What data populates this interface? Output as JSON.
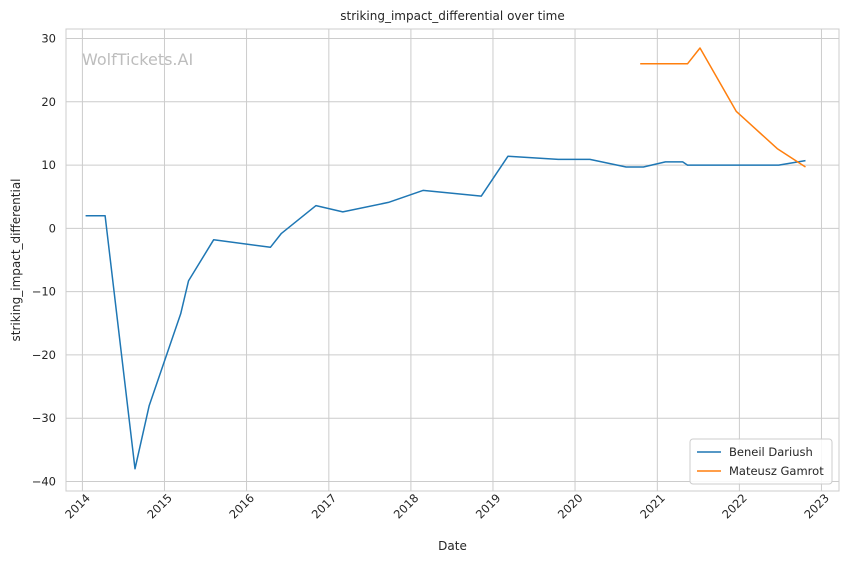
{
  "chart_data": {
    "type": "line",
    "title": "striking_impact_differential over time",
    "xlabel": "Date",
    "ylabel": "striking_impact_differential",
    "watermark": "WolfTickets.AI",
    "x_range": [
      "2013-10-20",
      "2023-03-20"
    ],
    "ylim": [
      -41.5,
      31.5
    ],
    "grid": true,
    "legend_position": "bottom-right",
    "x_ticks": [
      "2014-01-01",
      "2015-01-01",
      "2016-01-01",
      "2017-01-01",
      "2018-01-01",
      "2019-01-01",
      "2020-01-01",
      "2021-01-01",
      "2022-01-01",
      "2023-01-01"
    ],
    "x_tick_labels": [
      "2014",
      "2015",
      "2016",
      "2017",
      "2018",
      "2019",
      "2020",
      "2021",
      "2022",
      "2023"
    ],
    "y_ticks": [
      30,
      20,
      10,
      0,
      -10,
      -20,
      -30,
      -40
    ],
    "y_tick_labels": [
      "30",
      "20",
      "10",
      "0",
      "−10",
      "−20",
      "−30",
      "−40"
    ],
    "series": [
      {
        "name": "Beneil Dariush",
        "color": "#1f77b4",
        "points": [
          [
            "2014-01-15",
            2.0
          ],
          [
            "2014-04-12",
            2.0
          ],
          [
            "2014-08-23",
            -38.0
          ],
          [
            "2014-10-25",
            -28.0
          ],
          [
            "2015-03-14",
            -13.5
          ],
          [
            "2015-04-18",
            -8.3
          ],
          [
            "2015-08-08",
            -1.8
          ],
          [
            "2016-04-16",
            -3.0
          ],
          [
            "2016-06-04",
            -0.8
          ],
          [
            "2016-11-05",
            3.6
          ],
          [
            "2017-03-04",
            2.6
          ],
          [
            "2017-09-23",
            4.1
          ],
          [
            "2018-02-24",
            6.0
          ],
          [
            "2018-11-10",
            5.1
          ],
          [
            "2019-03-09",
            11.4
          ],
          [
            "2019-10-18",
            10.9
          ],
          [
            "2020-03-07",
            10.9
          ],
          [
            "2020-08-15",
            9.7
          ],
          [
            "2020-10-31",
            9.7
          ],
          [
            "2021-02-06",
            10.5
          ],
          [
            "2021-04-24",
            10.5
          ],
          [
            "2021-05-15",
            10.0
          ],
          [
            "2022-06-25",
            10.0
          ],
          [
            "2022-10-22",
            10.7
          ]
        ]
      },
      {
        "name": "Mateusz Gamrot",
        "color": "#ff7f0e",
        "points": [
          [
            "2020-10-17",
            26.0
          ],
          [
            "2021-02-21",
            26.0
          ],
          [
            "2021-05-15",
            26.0
          ],
          [
            "2021-07-10",
            28.5
          ],
          [
            "2021-12-18",
            18.5
          ],
          [
            "2022-06-18",
            12.6
          ],
          [
            "2022-10-22",
            9.7
          ]
        ]
      }
    ]
  }
}
